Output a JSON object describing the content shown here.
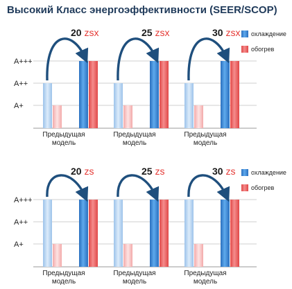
{
  "page": {
    "title": "Высокий Класс энергоэффективности (SEER/SCOP)"
  },
  "colors": {
    "cooling": "#3f8fd9",
    "heating": "#f06b6b",
    "arrow": "#1f4f7d",
    "grid": "#cfcfcf",
    "series_number": "#1a1a1a",
    "series_suffix": "#e53935"
  },
  "chart_data": [
    {
      "type": "bar",
      "levels": [
        "A+",
        "A++",
        "A+++"
      ],
      "legend": [
        "охлаждение",
        "обогрев"
      ],
      "groups": [
        {
          "number": "20",
          "suffix": "zsx",
          "label": [
            "Предыдущая",
            "модель"
          ],
          "previous": {
            "cooling": "A++",
            "heating": "A+"
          },
          "new": {
            "cooling": "A+++",
            "heating": "A+++"
          }
        },
        {
          "number": "25",
          "suffix": "zsx",
          "label": [
            "Предыдущая",
            "модель"
          ],
          "previous": {
            "cooling": "A++",
            "heating": "A+"
          },
          "new": {
            "cooling": "A+++",
            "heating": "A+++"
          }
        },
        {
          "number": "30",
          "suffix": "zsx",
          "label": [
            "Предыдущая",
            "модель"
          ],
          "previous": {
            "cooling": "A++",
            "heating": "A+"
          },
          "new": {
            "cooling": "A+++",
            "heating": "A+++"
          }
        }
      ]
    },
    {
      "type": "bar",
      "levels": [
        "A+",
        "A++",
        "A+++"
      ],
      "legend": [
        "охлаждение",
        "обогрев"
      ],
      "groups": [
        {
          "number": "20",
          "suffix": "zs",
          "label": [
            "Предыдущая",
            "модель"
          ],
          "previous": {
            "cooling": "A+++",
            "heating": "A+"
          },
          "new": {
            "cooling": "A+++",
            "heating": "A+++"
          }
        },
        {
          "number": "25",
          "suffix": "zs",
          "label": [
            "Предыдущая",
            "модель"
          ],
          "previous": {
            "cooling": "A+++",
            "heating": "A+"
          },
          "new": {
            "cooling": "A+++",
            "heating": "A+++"
          }
        },
        {
          "number": "30",
          "suffix": "zs",
          "label": [
            "Предыдущая",
            "модель"
          ],
          "previous": {
            "cooling": "A+++",
            "heating": "A+"
          },
          "new": {
            "cooling": "A+++",
            "heating": "A+++"
          }
        }
      ]
    }
  ]
}
